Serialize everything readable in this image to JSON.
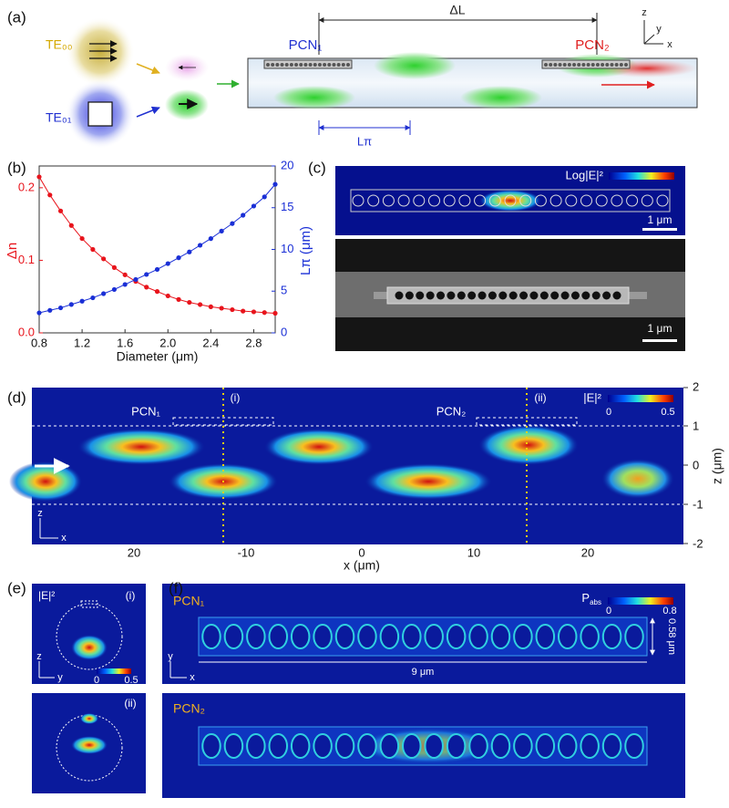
{
  "panel_labels": [
    "(a)",
    "(b)",
    "(c)",
    "(d)",
    "(e)",
    "(f)"
  ],
  "panel_a": {
    "te00": "TE₀₀",
    "te01": "TE₀₁",
    "pcn1": "PCN₁",
    "pcn2": "PCN₂",
    "delta_l": "ΔL",
    "l_pi": "Lπ",
    "axis_z": "z",
    "axis_y": "y",
    "axis_x": "x"
  },
  "chart_data": {
    "type": "line",
    "x_label": "Diameter (μm)",
    "x": [
      0.8,
      0.9,
      1.0,
      1.1,
      1.2,
      1.3,
      1.4,
      1.5,
      1.6,
      1.7,
      1.8,
      1.9,
      2.0,
      2.1,
      2.2,
      2.3,
      2.4,
      2.5,
      2.6,
      2.7,
      2.8,
      2.9,
      3.0
    ],
    "series": [
      {
        "name": "Δn",
        "color": "#e8141c",
        "values": [
          0.215,
          0.19,
          0.168,
          0.148,
          0.13,
          0.115,
          0.102,
          0.09,
          0.08,
          0.071,
          0.063,
          0.057,
          0.051,
          0.046,
          0.042,
          0.039,
          0.036,
          0.034,
          0.032,
          0.03,
          0.029,
          0.028,
          0.027
        ]
      },
      {
        "name": "Lπ (μm)",
        "color": "#1a2fd6",
        "axis": "y2",
        "values": [
          2.4,
          2.7,
          3.0,
          3.4,
          3.8,
          4.2,
          4.7,
          5.2,
          5.8,
          6.4,
          7.0,
          7.6,
          8.3,
          9.0,
          9.7,
          10.5,
          11.3,
          12.2,
          13.1,
          14.1,
          15.2,
          16.3,
          17.8
        ]
      }
    ],
    "xlim": [
      0.8,
      3.0
    ],
    "xticks": [
      0.8,
      1.2,
      1.6,
      {
        "value": 2,
        "label": "2.0"
      },
      2.4,
      2.8
    ],
    "ylim": [
      0,
      0.23
    ],
    "yticks": [
      {
        "value": 0,
        "label": "0.0"
      },
      0.1,
      0.2
    ],
    "y2lim": [
      0,
      20
    ],
    "y2ticks": [
      0,
      5,
      10,
      15,
      20
    ]
  },
  "panel_c": {
    "colorbar_label": "Log|E|²",
    "scale_top": "1 μm",
    "scale_bottom": "1 μm"
  },
  "panel_d": {
    "pcn1": "PCN₁",
    "marker_i": "(i)",
    "pcn2": "PCN₂",
    "marker_ii": "(ii)",
    "colorbar_label": "|E|²",
    "colorbar_min": "0",
    "colorbar_max": "0.5",
    "z_ticks": [
      "2",
      "1",
      "0",
      "-1",
      "-2"
    ],
    "z_label": "z (μm)",
    "x_ticks": [
      "20",
      "-10",
      "0",
      "10",
      "20"
    ],
    "x_label": "x (μm)",
    "axis_z": "z",
    "axis_x": "x"
  },
  "panel_e": {
    "field_label": "|E|²",
    "marker_i": "(i)",
    "axis_z": "z",
    "axis_y": "y",
    "colorbar_min": "0",
    "colorbar_max": "0.5",
    "marker_ii": "(ii)"
  },
  "panel_f": {
    "pcn1": "PCN₁",
    "colorbar_label": {
      "main": "P",
      "sub": "abs"
    },
    "colorbar_min": "0",
    "colorbar_max": "0.8",
    "height": "0.58 μm",
    "length": "9 μm",
    "axis_y": "y",
    "axis_x": "x",
    "pcn2": "PCN₂"
  }
}
